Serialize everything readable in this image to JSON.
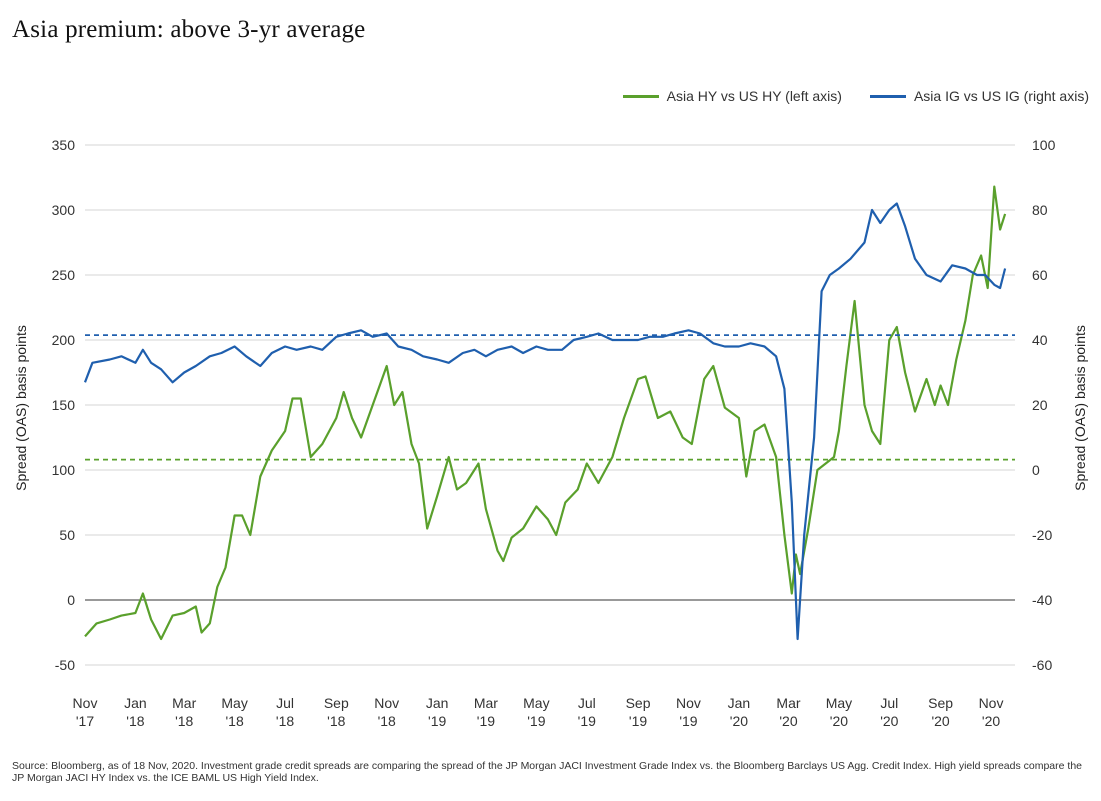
{
  "title": "Asia premium: above 3-yr average",
  "source": "Source: Bloomberg, as of 18 Nov, 2020.  Investment grade credit spreads are comparing the spread of the JP Morgan JACI Investment Grade Index vs. the Bloomberg Barclays US Agg. Credit Index. High yield spreads compare the JP Morgan JACI HY Index vs. the ICE BAML US High Yield Index.",
  "chart_data": {
    "type": "line",
    "title": "Asia premium: above 3-yr average",
    "ylabel_left": "Spread (OAS) basis points",
    "ylabel_right": "Spread (OAS) basis points",
    "ylim_left": [
      -50,
      350
    ],
    "ylim_right": [
      -60,
      100
    ],
    "yticks_left": [
      -50,
      0,
      50,
      100,
      150,
      200,
      250,
      300,
      350
    ],
    "yticks_right": [
      -60,
      -40,
      -20,
      0,
      20,
      40,
      60,
      80,
      100
    ],
    "xlim": [
      "2017-11-01",
      "2020-11-30"
    ],
    "xticks": [
      {
        "date": "2017-11-01",
        "l1": "Nov",
        "l2": "'17"
      },
      {
        "date": "2018-01-01",
        "l1": "Jan",
        "l2": "'18"
      },
      {
        "date": "2018-03-01",
        "l1": "Mar",
        "l2": "'18"
      },
      {
        "date": "2018-05-01",
        "l1": "May",
        "l2": "'18"
      },
      {
        "date": "2018-07-01",
        "l1": "Jul",
        "l2": "'18"
      },
      {
        "date": "2018-09-01",
        "l1": "Sep",
        "l2": "'18"
      },
      {
        "date": "2018-11-01",
        "l1": "Nov",
        "l2": "'18"
      },
      {
        "date": "2019-01-01",
        "l1": "Jan",
        "l2": "'19"
      },
      {
        "date": "2019-03-01",
        "l1": "Mar",
        "l2": "'19"
      },
      {
        "date": "2019-05-01",
        "l1": "May",
        "l2": "'19"
      },
      {
        "date": "2019-07-01",
        "l1": "Jul",
        "l2": "'19"
      },
      {
        "date": "2019-09-01",
        "l1": "Sep",
        "l2": "'19"
      },
      {
        "date": "2019-11-01",
        "l1": "Nov",
        "l2": "'19"
      },
      {
        "date": "2020-01-01",
        "l1": "Jan",
        "l2": "'20"
      },
      {
        "date": "2020-03-01",
        "l1": "Mar",
        "l2": "'20"
      },
      {
        "date": "2020-05-01",
        "l1": "May",
        "l2": "'20"
      },
      {
        "date": "2020-07-01",
        "l1": "Jul",
        "l2": "'20"
      },
      {
        "date": "2020-09-01",
        "l1": "Sep",
        "l2": "'20"
      },
      {
        "date": "2020-11-01",
        "l1": "Nov",
        "l2": "'20"
      }
    ],
    "grid": true,
    "legend_position": "top-right",
    "series": [
      {
        "name": "Asia HY vs US HY (left axis)",
        "axis": "left",
        "color": "#5aa02c",
        "average": 108,
        "points": [
          [
            "2017-11-01",
            -28
          ],
          [
            "2017-11-15",
            -18
          ],
          [
            "2017-12-01",
            -15
          ],
          [
            "2017-12-15",
            -12
          ],
          [
            "2018-01-01",
            -10
          ],
          [
            "2018-01-10",
            5
          ],
          [
            "2018-01-20",
            -15
          ],
          [
            "2018-02-01",
            -30
          ],
          [
            "2018-02-15",
            -12
          ],
          [
            "2018-03-01",
            -10
          ],
          [
            "2018-03-15",
            -5
          ],
          [
            "2018-03-22",
            -25
          ],
          [
            "2018-04-01",
            -18
          ],
          [
            "2018-04-10",
            10
          ],
          [
            "2018-04-20",
            25
          ],
          [
            "2018-05-01",
            65
          ],
          [
            "2018-05-10",
            65
          ],
          [
            "2018-05-20",
            50
          ],
          [
            "2018-06-01",
            95
          ],
          [
            "2018-06-15",
            115
          ],
          [
            "2018-07-01",
            130
          ],
          [
            "2018-07-10",
            155
          ],
          [
            "2018-07-20",
            155
          ],
          [
            "2018-08-01",
            110
          ],
          [
            "2018-08-15",
            120
          ],
          [
            "2018-09-01",
            140
          ],
          [
            "2018-09-10",
            160
          ],
          [
            "2018-09-20",
            140
          ],
          [
            "2018-10-01",
            125
          ],
          [
            "2018-10-15",
            150
          ],
          [
            "2018-11-01",
            180
          ],
          [
            "2018-11-10",
            150
          ],
          [
            "2018-11-20",
            160
          ],
          [
            "2018-12-01",
            120
          ],
          [
            "2018-12-10",
            105
          ],
          [
            "2018-12-20",
            55
          ],
          [
            "2019-01-01",
            80
          ],
          [
            "2019-01-15",
            110
          ],
          [
            "2019-01-25",
            85
          ],
          [
            "2019-02-05",
            90
          ],
          [
            "2019-02-20",
            105
          ],
          [
            "2019-03-01",
            70
          ],
          [
            "2019-03-15",
            38
          ],
          [
            "2019-03-22",
            30
          ],
          [
            "2019-04-01",
            48
          ],
          [
            "2019-04-15",
            55
          ],
          [
            "2019-05-01",
            72
          ],
          [
            "2019-05-15",
            62
          ],
          [
            "2019-05-25",
            50
          ],
          [
            "2019-06-05",
            75
          ],
          [
            "2019-06-20",
            85
          ],
          [
            "2019-07-01",
            105
          ],
          [
            "2019-07-15",
            90
          ],
          [
            "2019-08-01",
            110
          ],
          [
            "2019-08-15",
            140
          ],
          [
            "2019-09-01",
            170
          ],
          [
            "2019-09-10",
            172
          ],
          [
            "2019-09-25",
            140
          ],
          [
            "2019-10-10",
            145
          ],
          [
            "2019-10-25",
            125
          ],
          [
            "2019-11-05",
            120
          ],
          [
            "2019-11-20",
            170
          ],
          [
            "2019-12-01",
            180
          ],
          [
            "2019-12-15",
            148
          ],
          [
            "2020-01-01",
            140
          ],
          [
            "2020-01-10",
            95
          ],
          [
            "2020-01-20",
            130
          ],
          [
            "2020-02-01",
            135
          ],
          [
            "2020-02-15",
            110
          ],
          [
            "2020-02-25",
            50
          ],
          [
            "2020-03-05",
            5
          ],
          [
            "2020-03-10",
            35
          ],
          [
            "2020-03-15",
            20
          ],
          [
            "2020-03-25",
            55
          ],
          [
            "2020-04-05",
            100
          ],
          [
            "2020-04-15",
            105
          ],
          [
            "2020-04-25",
            110
          ],
          [
            "2020-05-01",
            130
          ],
          [
            "2020-05-10",
            180
          ],
          [
            "2020-05-20",
            230
          ],
          [
            "2020-06-01",
            150
          ],
          [
            "2020-06-10",
            130
          ],
          [
            "2020-06-20",
            120
          ],
          [
            "2020-07-01",
            200
          ],
          [
            "2020-07-10",
            210
          ],
          [
            "2020-07-20",
            175
          ],
          [
            "2020-08-01",
            145
          ],
          [
            "2020-08-15",
            170
          ],
          [
            "2020-08-25",
            150
          ],
          [
            "2020-09-01",
            165
          ],
          [
            "2020-09-10",
            150
          ],
          [
            "2020-09-20",
            185
          ],
          [
            "2020-10-01",
            215
          ],
          [
            "2020-10-10",
            250
          ],
          [
            "2020-10-20",
            265
          ],
          [
            "2020-10-28",
            240
          ],
          [
            "2020-11-05",
            318
          ],
          [
            "2020-11-12",
            285
          ],
          [
            "2020-11-18",
            297
          ]
        ]
      },
      {
        "name": "Asia IG vs US IG (right axis)",
        "axis": "right",
        "color": "#1f5fae",
        "average": 41.5,
        "points": [
          [
            "2017-11-01",
            27
          ],
          [
            "2017-11-10",
            33
          ],
          [
            "2017-12-01",
            34
          ],
          [
            "2017-12-15",
            35
          ],
          [
            "2018-01-01",
            33
          ],
          [
            "2018-01-10",
            37
          ],
          [
            "2018-01-20",
            33
          ],
          [
            "2018-02-01",
            31
          ],
          [
            "2018-02-15",
            27
          ],
          [
            "2018-03-01",
            30
          ],
          [
            "2018-03-15",
            32
          ],
          [
            "2018-04-01",
            35
          ],
          [
            "2018-04-15",
            36
          ],
          [
            "2018-05-01",
            38
          ],
          [
            "2018-05-15",
            35
          ],
          [
            "2018-06-01",
            32
          ],
          [
            "2018-06-15",
            36
          ],
          [
            "2018-07-01",
            38
          ],
          [
            "2018-07-15",
            37
          ],
          [
            "2018-08-01",
            38
          ],
          [
            "2018-08-15",
            37
          ],
          [
            "2018-09-01",
            41
          ],
          [
            "2018-09-15",
            42
          ],
          [
            "2018-10-01",
            43
          ],
          [
            "2018-10-15",
            41
          ],
          [
            "2018-11-01",
            42
          ],
          [
            "2018-11-15",
            38
          ],
          [
            "2018-12-01",
            37
          ],
          [
            "2018-12-15",
            35
          ],
          [
            "2019-01-01",
            34
          ],
          [
            "2019-01-15",
            33
          ],
          [
            "2019-02-01",
            36
          ],
          [
            "2019-02-15",
            37
          ],
          [
            "2019-03-01",
            35
          ],
          [
            "2019-03-15",
            37
          ],
          [
            "2019-04-01",
            38
          ],
          [
            "2019-04-15",
            36
          ],
          [
            "2019-05-01",
            38
          ],
          [
            "2019-05-15",
            37
          ],
          [
            "2019-06-01",
            37
          ],
          [
            "2019-06-15",
            40
          ],
          [
            "2019-07-01",
            41
          ],
          [
            "2019-07-15",
            42
          ],
          [
            "2019-08-01",
            40
          ],
          [
            "2019-08-15",
            40
          ],
          [
            "2019-09-01",
            40
          ],
          [
            "2019-09-15",
            41
          ],
          [
            "2019-10-01",
            41
          ],
          [
            "2019-10-15",
            42
          ],
          [
            "2019-11-01",
            43
          ],
          [
            "2019-11-15",
            42
          ],
          [
            "2019-12-01",
            39
          ],
          [
            "2019-12-15",
            38
          ],
          [
            "2020-01-01",
            38
          ],
          [
            "2020-01-15",
            39
          ],
          [
            "2020-02-01",
            38
          ],
          [
            "2020-02-15",
            35
          ],
          [
            "2020-02-25",
            25
          ],
          [
            "2020-03-05",
            -10
          ],
          [
            "2020-03-12",
            -52
          ],
          [
            "2020-03-20",
            -20
          ],
          [
            "2020-04-01",
            10
          ],
          [
            "2020-04-10",
            55
          ],
          [
            "2020-04-20",
            60
          ],
          [
            "2020-05-01",
            62
          ],
          [
            "2020-05-15",
            65
          ],
          [
            "2020-06-01",
            70
          ],
          [
            "2020-06-10",
            80
          ],
          [
            "2020-06-20",
            76
          ],
          [
            "2020-07-01",
            80
          ],
          [
            "2020-07-10",
            82
          ],
          [
            "2020-07-20",
            75
          ],
          [
            "2020-08-01",
            65
          ],
          [
            "2020-08-15",
            60
          ],
          [
            "2020-09-01",
            58
          ],
          [
            "2020-09-15",
            63
          ],
          [
            "2020-10-01",
            62
          ],
          [
            "2020-10-15",
            60
          ],
          [
            "2020-10-25",
            60
          ],
          [
            "2020-11-05",
            57
          ],
          [
            "2020-11-12",
            56
          ],
          [
            "2020-11-18",
            62
          ]
        ]
      }
    ]
  }
}
